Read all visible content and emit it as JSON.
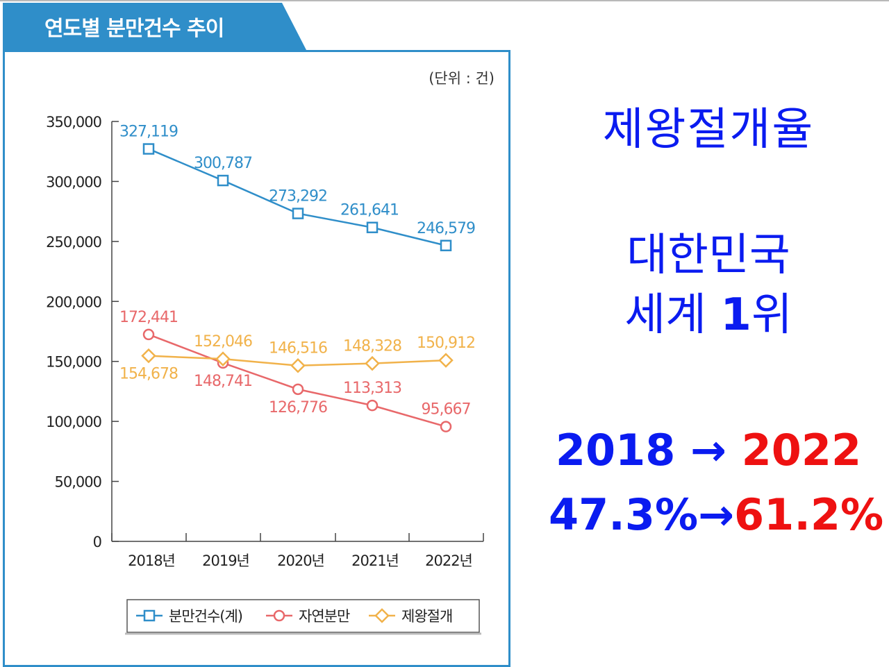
{
  "chart_data": {
    "type": "line",
    "title": "연도별 분만건수 추이",
    "unit_label": "(단위 : 건)",
    "categories": [
      "2018년",
      "2019년",
      "2020년",
      "2021년",
      "2022년"
    ],
    "y_ticks": [
      "350,000",
      "300,000",
      "250,000",
      "200,000",
      "150,000",
      "100,000",
      "50,000",
      "0"
    ],
    "y_tick_values": [
      350000,
      300000,
      250000,
      200000,
      150000,
      100000,
      50000,
      0
    ],
    "ylim": [
      0,
      350000
    ],
    "grid": false,
    "legend_position": "bottom",
    "series": [
      {
        "name": "분만건수(계)",
        "marker": "square",
        "color": "#2f8ec9",
        "values": [
          327119,
          300787,
          273292,
          261641,
          246579
        ],
        "labels": [
          "327,119",
          "300,787",
          "273,292",
          "261,641",
          "246,579"
        ],
        "label_position": "above"
      },
      {
        "name": "자연분만",
        "marker": "circle",
        "color": "#e8686a",
        "values": [
          172441,
          148741,
          126776,
          113313,
          95667
        ],
        "labels": [
          "172,441",
          "148,741",
          "126,776",
          "113,313",
          "95,667"
        ],
        "label_position": "mixed"
      },
      {
        "name": "제왕절개",
        "marker": "diamond",
        "color": "#f1b24a",
        "values": [
          154678,
          152046,
          146516,
          148328,
          150912
        ],
        "labels": [
          "154,678",
          "152,046",
          "146,516",
          "148,328",
          "150,912"
        ],
        "label_position": "mixed"
      }
    ]
  },
  "side": {
    "title": "제왕절개율",
    "rank_line1": "대한민국",
    "rank_line2_prefix": "세계 ",
    "rank_line2_bold": "1",
    "rank_line2_suffix": "위",
    "year_from": "2018",
    "arrow": "→",
    "year_to": "2022",
    "rate_from": "47.3%",
    "rate_to": "61.2%",
    "colors": {
      "from": "#0a1bf0",
      "to": "#ee1111"
    }
  }
}
